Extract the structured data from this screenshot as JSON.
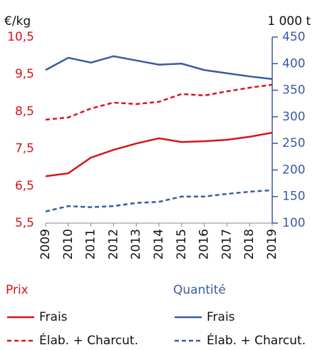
{
  "chart_data": {
    "type": "line",
    "y_label": "€/kg",
    "y2_label": "1 000 t",
    "x": [
      2009,
      2010,
      2011,
      2012,
      2013,
      2014,
      2015,
      2016,
      2017,
      2018,
      2019
    ],
    "xlim": [
      2009,
      2019
    ],
    "ylim": [
      5.5,
      10.5
    ],
    "yticks": [
      {
        "value": 5.5,
        "label": "5,5"
      },
      {
        "value": 6.5,
        "label": "6,5"
      },
      {
        "value": 7.5,
        "label": "7,5"
      },
      {
        "value": 8.5,
        "label": "8,5"
      },
      {
        "value": 9.5,
        "label": "9,5"
      },
      {
        "value": 10.5,
        "label": "10,5"
      }
    ],
    "y2lim": [
      100,
      450
    ],
    "y2ticks": [
      100,
      150,
      200,
      250,
      300,
      350,
      400,
      450
    ],
    "y_color": "#d7141e",
    "y2_color": "#3a5ba0",
    "legend_titles": [
      "Prix",
      "Quantité"
    ],
    "series": [
      {
        "name": "Frais",
        "color": "#d7141e",
        "dashed": false,
        "values": [
          6.76,
          6.84,
          7.26,
          7.47,
          7.64,
          7.78,
          7.68,
          7.7,
          7.74,
          7.82,
          7.93
        ]
      },
      {
        "name": "Élab. + Charcut.",
        "color": "#d7141e",
        "dashed": true,
        "values": [
          8.28,
          8.34,
          8.58,
          8.74,
          8.7,
          8.76,
          8.97,
          8.93,
          9.04,
          9.14,
          9.22
        ]
      },
      {
        "name": "Frais",
        "color": "#3a5ba0",
        "dashed": false,
        "axis": "y2",
        "values": [
          388,
          411,
          402,
          414,
          406,
          398,
          400,
          388,
          382,
          376,
          371
        ]
      },
      {
        "name": "Élab. + Charcut.",
        "color": "#3a5ba0",
        "dashed": true,
        "axis": "y2",
        "values": [
          122,
          132,
          130,
          132,
          138,
          140,
          150,
          150,
          155,
          159,
          162
        ]
      }
    ]
  }
}
